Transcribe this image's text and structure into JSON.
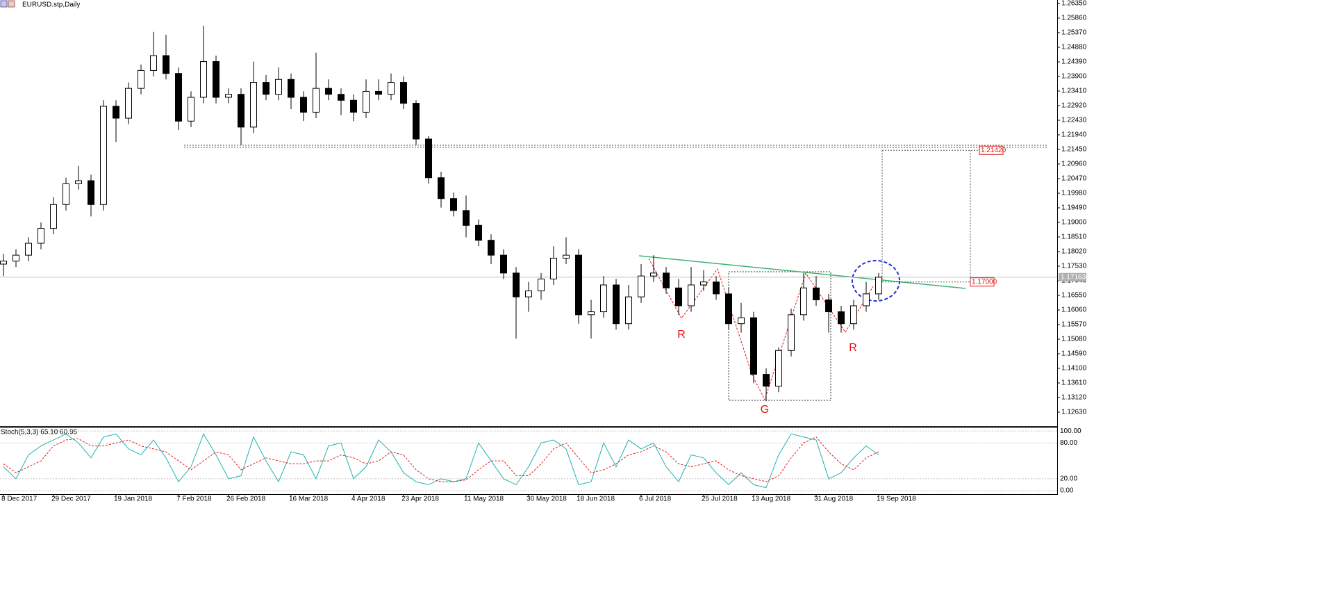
{
  "chart_data": [
    {
      "type": "candlestick",
      "title": "EURUSD.stp,Daily",
      "categories": [
        "8 Dec 2017",
        null,
        null,
        null,
        "29 Dec 2017",
        null,
        null,
        null,
        null,
        "19 Jan 2018",
        null,
        null,
        null,
        null,
        "7 Feb 2018",
        null,
        null,
        null,
        "26 Feb 2018",
        null,
        null,
        null,
        null,
        "16 Mar 2018",
        null,
        null,
        null,
        null,
        "4 Apr 2018",
        null,
        null,
        null,
        "23 Apr 2018",
        null,
        null,
        null,
        null,
        "11 May 2018",
        null,
        null,
        null,
        null,
        "30 May 2018",
        null,
        null,
        null,
        "18 Jun 2018",
        null,
        null,
        null,
        null,
        "6 Jul 2018",
        null,
        null,
        null,
        null,
        "25 Jul 2018",
        null,
        null,
        null,
        "13 Aug 2018",
        null,
        null,
        null,
        null,
        "31 Aug 2018",
        null,
        null,
        null,
        null,
        "19 Sep 2018"
      ],
      "open": [
        1.176,
        1.177,
        1.179,
        1.183,
        1.188,
        1.196,
        1.203,
        1.204,
        1.196,
        1.229,
        1.225,
        1.235,
        1.241,
        1.246,
        1.24,
        1.224,
        1.232,
        1.244,
        1.232,
        1.233,
        1.222,
        1.237,
        1.233,
        1.238,
        1.232,
        1.227,
        1.235,
        1.233,
        1.231,
        1.227,
        1.234,
        1.233,
        1.237,
        1.23,
        1.218,
        1.205,
        1.198,
        1.194,
        1.189,
        1.184,
        1.179,
        1.173,
        1.165,
        1.167,
        1.171,
        1.178,
        1.179,
        1.159,
        1.16,
        1.169,
        1.156,
        1.165,
        1.172,
        1.173,
        1.168,
        1.162,
        1.169,
        1.17,
        1.166,
        1.156,
        1.158,
        1.139,
        1.135,
        1.147,
        1.159,
        1.168,
        1.164,
        1.16,
        1.156,
        1.162,
        1.166
      ],
      "high": [
        1.1795,
        1.181,
        1.185,
        1.19,
        1.1985,
        1.205,
        1.209,
        1.206,
        1.231,
        1.231,
        1.237,
        1.243,
        1.254,
        1.253,
        1.242,
        1.234,
        1.256,
        1.246,
        1.235,
        1.235,
        1.244,
        1.2395,
        1.242,
        1.24,
        1.234,
        1.247,
        1.238,
        1.235,
        1.233,
        1.238,
        1.238,
        1.24,
        1.239,
        1.231,
        1.219,
        1.207,
        1.2,
        1.199,
        1.191,
        1.186,
        1.181,
        1.175,
        1.17,
        1.173,
        1.182,
        1.185,
        1.181,
        1.164,
        1.172,
        1.171,
        1.169,
        1.176,
        1.179,
        1.175,
        1.171,
        1.175,
        1.174,
        1.172,
        1.168,
        1.163,
        1.16,
        1.141,
        1.148,
        1.161,
        1.173,
        1.172,
        1.166,
        1.162,
        1.164,
        1.17,
        1.173
      ],
      "low": [
        1.172,
        1.175,
        1.177,
        1.181,
        1.186,
        1.194,
        1.201,
        1.192,
        1.194,
        1.217,
        1.223,
        1.233,
        1.239,
        1.238,
        1.221,
        1.222,
        1.23,
        1.23,
        1.23,
        1.216,
        1.22,
        1.231,
        1.231,
        1.228,
        1.224,
        1.225,
        1.231,
        1.226,
        1.224,
        1.225,
        1.231,
        1.231,
        1.228,
        1.216,
        1.203,
        1.195,
        1.192,
        1.185,
        1.182,
        1.176,
        1.171,
        1.151,
        1.16,
        1.164,
        1.169,
        1.176,
        1.156,
        1.151,
        1.158,
        1.154,
        1.154,
        1.163,
        1.17,
        1.166,
        1.159,
        1.16,
        1.167,
        1.164,
        1.154,
        1.153,
        1.136,
        1.13,
        1.133,
        1.145,
        1.157,
        1.162,
        1.153,
        1.153,
        1.154,
        1.16,
        1.164
      ],
      "close": [
        1.177,
        1.179,
        1.183,
        1.188,
        1.196,
        1.203,
        1.204,
        1.196,
        1.229,
        1.225,
        1.235,
        1.241,
        1.246,
        1.24,
        1.224,
        1.232,
        1.244,
        1.232,
        1.233,
        1.222,
        1.237,
        1.233,
        1.238,
        1.232,
        1.227,
        1.235,
        1.233,
        1.231,
        1.227,
        1.234,
        1.233,
        1.237,
        1.23,
        1.218,
        1.205,
        1.198,
        1.194,
        1.189,
        1.184,
        1.179,
        1.173,
        1.165,
        1.167,
        1.171,
        1.178,
        1.179,
        1.159,
        1.16,
        1.169,
        1.156,
        1.165,
        1.172,
        1.173,
        1.168,
        1.162,
        1.169,
        1.17,
        1.166,
        1.156,
        1.158,
        1.139,
        1.135,
        1.147,
        1.159,
        1.168,
        1.164,
        1.16,
        1.156,
        1.162,
        1.166,
        1.1716
      ],
      "ylim": [
        1.12163,
        1.26467
      ],
      "yticks": [
        {
          "value": 1.2635,
          "label": "1.26350"
        },
        {
          "value": 1.2586,
          "label": "1.25860"
        },
        {
          "value": 1.2537,
          "label": "1.25370"
        },
        {
          "value": 1.2488,
          "label": "1.24880"
        },
        {
          "value": 1.2439,
          "label": "1.24390"
        },
        {
          "value": 1.239,
          "label": "1.23900"
        },
        {
          "value": 1.2341,
          "label": "1.23410"
        },
        {
          "value": 1.2292,
          "label": "1.22920"
        },
        {
          "value": 1.2243,
          "label": "1.22430"
        },
        {
          "value": 1.2194,
          "label": "1.21940"
        },
        {
          "value": 1.2145,
          "label": "1.21450"
        },
        {
          "value": 1.2096,
          "label": "1.20960"
        },
        {
          "value": 1.2047,
          "label": "1.20470"
        },
        {
          "value": 1.1998,
          "label": "1.19980"
        },
        {
          "value": 1.1949,
          "label": "1.19490"
        },
        {
          "value": 1.19,
          "label": "1.19000"
        },
        {
          "value": 1.1851,
          "label": "1.18510"
        },
        {
          "value": 1.1802,
          "label": "1.18020"
        },
        {
          "value": 1.1753,
          "label": "1.17530"
        },
        {
          "value": 1.1704,
          "label": "1.17040"
        },
        {
          "value": 1.1655,
          "label": "1.16550"
        },
        {
          "value": 1.1606,
          "label": "1.16060"
        },
        {
          "value": 1.1557,
          "label": "1.15570"
        },
        {
          "value": 1.1508,
          "label": "1.15080"
        },
        {
          "value": 1.1459,
          "label": "1.14590"
        },
        {
          "value": 1.141,
          "label": "1.14100"
        },
        {
          "value": 1.1361,
          "label": "1.13610"
        },
        {
          "value": 1.1312,
          "label": "1.13120"
        },
        {
          "value": 1.1263,
          "label": "1.12630"
        }
      ],
      "levels": [
        {
          "value": 1.2142,
          "label": "1.21420"
        },
        {
          "value": 1.17,
          "label": "1.17000"
        }
      ],
      "current_price": {
        "value": 1.17163,
        "label": "1.17163"
      },
      "annotations": [
        "R",
        "R",
        "G"
      ]
    },
    {
      "type": "line",
      "title": "Stoch(5,3,3) 65.10 60.95",
      "series": [
        {
          "name": "Main",
          "color": "#20b2b2",
          "values": [
            40,
            20,
            60,
            75,
            85,
            95,
            80,
            55,
            90,
            95,
            70,
            60,
            85,
            55,
            15,
            40,
            95,
            60,
            20,
            25,
            90,
            50,
            15,
            65,
            60,
            20,
            75,
            80,
            20,
            40,
            85,
            65,
            30,
            15,
            10,
            20,
            15,
            20,
            80,
            50,
            20,
            10,
            40,
            80,
            85,
            70,
            10,
            15,
            80,
            40,
            85,
            70,
            80,
            40,
            15,
            60,
            55,
            30,
            10,
            30,
            10,
            5,
            60,
            95,
            90,
            85,
            20,
            30,
            55,
            75,
            60
          ]
        },
        {
          "name": "Signal",
          "color": "#e02020",
          "values": [
            45,
            30,
            40,
            50,
            75,
            85,
            87,
            75,
            75,
            80,
            85,
            75,
            70,
            65,
            50,
            35,
            50,
            65,
            60,
            35,
            45,
            55,
            50,
            45,
            45,
            50,
            50,
            60,
            55,
            45,
            50,
            65,
            60,
            35,
            20,
            15,
            15,
            18,
            35,
            50,
            50,
            25,
            25,
            45,
            70,
            80,
            55,
            30,
            35,
            45,
            60,
            65,
            75,
            65,
            45,
            40,
            45,
            50,
            35,
            25,
            20,
            15,
            25,
            55,
            80,
            90,
            65,
            45,
            35,
            55,
            65
          ]
        }
      ],
      "ylim": [
        -7,
        106
      ],
      "yticks": [
        {
          "value": 100,
          "label": "100.00"
        },
        {
          "value": 80,
          "label": "80.00"
        },
        {
          "value": 20,
          "label": "20.00"
        },
        {
          "value": 0,
          "label": "0.00"
        }
      ]
    }
  ]
}
